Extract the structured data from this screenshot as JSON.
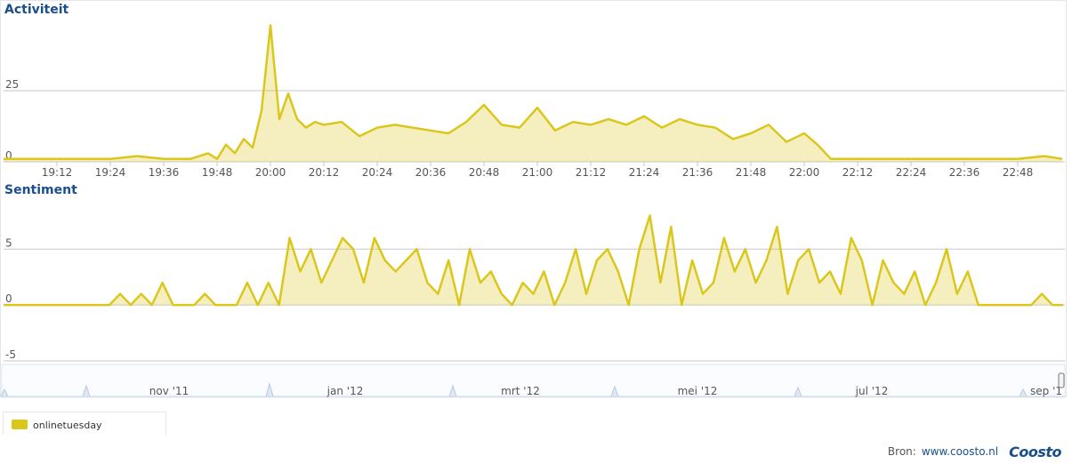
{
  "activity_title": "Activiteit",
  "sentiment_title": "Sentiment",
  "legend": {
    "label": "onlinetuesday",
    "color": "#dbc71c"
  },
  "source": {
    "label": "Bron:",
    "link": "www.coosto.nl",
    "logo": "Coosto"
  },
  "navigator": {
    "labels": [
      "nov '11",
      "jan '12",
      "mrt '12",
      "mei '12",
      "jul '12",
      "sep '1"
    ]
  },
  "chart_data": [
    {
      "type": "area",
      "title": "Activiteit",
      "x_unit": "time",
      "x_ticks": [
        "19:12",
        "19:24",
        "19:36",
        "19:48",
        "20:00",
        "20:12",
        "20:24",
        "20:36",
        "20:48",
        "21:00",
        "21:12",
        "21:24",
        "21:36",
        "21:48",
        "22:00",
        "22:12",
        "22:24",
        "22:36",
        "22:48"
      ],
      "y_ticks": [
        0,
        25
      ],
      "ylim": [
        0,
        50
      ],
      "series": [
        {
          "color": "#dbc71c",
          "x": [
            "19:00",
            "19:06",
            "19:12",
            "19:18",
            "19:24",
            "19:30",
            "19:36",
            "19:42",
            "19:46",
            "19:48",
            "19:50",
            "19:52",
            "19:54",
            "19:56",
            "19:58",
            "20:00",
            "20:02",
            "20:04",
            "20:06",
            "20:08",
            "20:10",
            "20:12",
            "20:16",
            "20:20",
            "20:24",
            "20:28",
            "20:32",
            "20:36",
            "20:40",
            "20:44",
            "20:48",
            "20:52",
            "20:56",
            "21:00",
            "21:04",
            "21:08",
            "21:12",
            "21:16",
            "21:20",
            "21:24",
            "21:28",
            "21:32",
            "21:36",
            "21:40",
            "21:44",
            "21:48",
            "21:52",
            "21:56",
            "22:00",
            "22:03",
            "22:06",
            "22:12",
            "22:24",
            "22:36",
            "22:48",
            "22:54",
            "22:58"
          ],
          "y": [
            1,
            1,
            1,
            1,
            1,
            2,
            1,
            1,
            3,
            1,
            6,
            3,
            8,
            5,
            18,
            48,
            15,
            24,
            15,
            12,
            14,
            13,
            14,
            9,
            12,
            13,
            12,
            11,
            10,
            14,
            20,
            13,
            12,
            19,
            11,
            14,
            13,
            15,
            13,
            16,
            12,
            15,
            13,
            12,
            8,
            10,
            13,
            7,
            10,
            6,
            1,
            1,
            1,
            1,
            1,
            2,
            1
          ]
        }
      ]
    },
    {
      "type": "area",
      "title": "Sentiment",
      "y_ticks": [
        -5,
        0,
        5
      ],
      "ylim": [
        -5,
        9
      ],
      "series": [
        {
          "color": "#dbc71c",
          "x_index": [
            0,
            10,
            20,
            22,
            24,
            26,
            28,
            30,
            32,
            34,
            36,
            38,
            40,
            42,
            44,
            46,
            48,
            50,
            52,
            54,
            56,
            58,
            60,
            62,
            64,
            66,
            68,
            70,
            72,
            74,
            76,
            78,
            80,
            82,
            84,
            86,
            88,
            90,
            92,
            94,
            96,
            98,
            100,
            102,
            104,
            106,
            108,
            110,
            112,
            114,
            116,
            118,
            120,
            122,
            124,
            126,
            128,
            130,
            132,
            134,
            136,
            138,
            140,
            142,
            144,
            146,
            148,
            150,
            152,
            154,
            156,
            158,
            160,
            162,
            164,
            166,
            168,
            170,
            172,
            174,
            176,
            178,
            180,
            182,
            184,
            186,
            188,
            190,
            192,
            194,
            196,
            198,
            200
          ],
          "y": [
            0,
            0,
            0,
            1,
            0,
            1,
            0,
            2,
            0,
            0,
            0,
            1,
            0,
            0,
            0,
            2,
            0,
            2,
            0,
            6,
            3,
            5,
            2,
            4,
            6,
            5,
            2,
            6,
            4,
            3,
            4,
            5,
            2,
            1,
            4,
            0,
            5,
            2,
            3,
            1,
            0,
            2,
            1,
            3,
            0,
            2,
            5,
            1,
            4,
            5,
            3,
            0,
            5,
            8,
            2,
            7,
            0,
            4,
            1,
            2,
            6,
            3,
            5,
            2,
            4,
            7,
            1,
            4,
            5,
            2,
            3,
            1,
            6,
            4,
            0,
            4,
            2,
            1,
            3,
            0,
            2,
            5,
            1,
            3,
            0,
            0,
            0,
            0,
            0,
            0,
            1,
            0,
            0
          ]
        }
      ]
    }
  ]
}
